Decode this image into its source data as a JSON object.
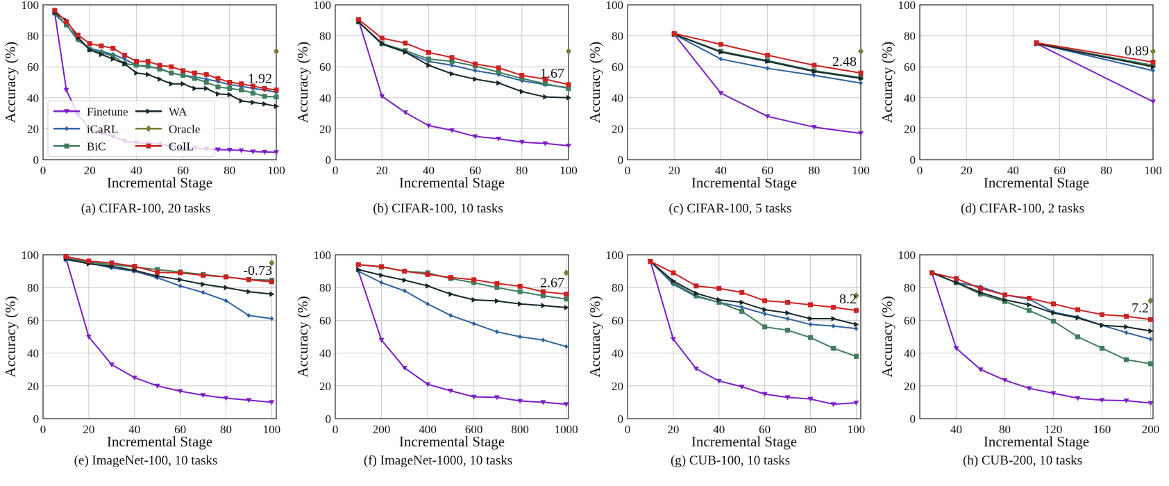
{
  "series_styles": {
    "Finetune": {
      "color": "#7b1fc9",
      "marker": "triangle-down"
    },
    "iCaRL": {
      "color": "#2e62a0",
      "marker": "diamond-small"
    },
    "BiC": {
      "color": "#3f7d5e",
      "marker": "square"
    },
    "WA": {
      "color": "#16262a",
      "marker": "triangle-right"
    },
    "Oracle": {
      "color": "#7a7a3a",
      "marker": "diamond"
    },
    "CoIL": {
      "color": "#cc2222",
      "marker": "square"
    }
  },
  "legend": {
    "placement": "lower-left",
    "panel": 0,
    "columns": [
      [
        "Finetune",
        "iCaRL",
        "BiC"
      ],
      [
        "WA",
        "Oracle",
        "CoIL"
      ]
    ]
  },
  "chart_data": [
    {
      "type": "line",
      "caption": "(a)  CIFAR-100, 20 tasks",
      "xlabel": "Incremental Stage",
      "ylabel": "Accuracy (%)",
      "xlim": [
        0,
        100
      ],
      "ylim": [
        0,
        100
      ],
      "xticks": [
        0,
        20,
        40,
        60,
        80,
        100
      ],
      "yticks": [
        0,
        20,
        40,
        60,
        80,
        100
      ],
      "grid": true,
      "annotation": "1.92",
      "x": [
        5,
        10,
        15,
        20,
        25,
        30,
        35,
        40,
        45,
        50,
        55,
        60,
        65,
        70,
        75,
        80,
        85,
        90,
        95,
        100
      ],
      "series": [
        {
          "name": "Finetune",
          "values": [
            95,
            45,
            29,
            20,
            17,
            15,
            12,
            11,
            10.5,
            10,
            9,
            7,
            7.5,
            7,
            6.5,
            6.3,
            6,
            5.2,
            5,
            4.8
          ]
        },
        {
          "name": "iCaRL",
          "values": [
            94,
            87,
            77,
            72,
            70,
            68,
            65,
            61,
            60,
            59,
            56,
            54.5,
            53.5,
            52,
            50.5,
            48.5,
            47.5,
            46,
            45,
            43.5
          ]
        },
        {
          "name": "BiC",
          "values": [
            95,
            87,
            78,
            71,
            69,
            67,
            62,
            61,
            60.5,
            58.5,
            56,
            54.5,
            52.5,
            50,
            47,
            46,
            45,
            43,
            41,
            40.5
          ]
        },
        {
          "name": "WA",
          "values": [
            95,
            90,
            79,
            71,
            68,
            65,
            62,
            56,
            55,
            52,
            49,
            49,
            46,
            46,
            42.5,
            42,
            38,
            37,
            36,
            34.5
          ]
        },
        {
          "name": "CoIL",
          "values": [
            96.5,
            89,
            80.5,
            75,
            73.5,
            72,
            67.5,
            63.5,
            63.5,
            61,
            60,
            57.5,
            56,
            55,
            52.5,
            50,
            49,
            47.5,
            46,
            45
          ]
        },
        {
          "name": "Oracle",
          "x": [
            100
          ],
          "values": [
            70
          ]
        }
      ]
    },
    {
      "type": "line",
      "caption": "(b)  CIFAR-100, 10 tasks",
      "xlabel": "Incremental Stage",
      "ylabel": "Accuracy (%)",
      "xlim": [
        0,
        100
      ],
      "ylim": [
        0,
        100
      ],
      "xticks": [
        0,
        20,
        40,
        60,
        80,
        100
      ],
      "yticks": [
        0,
        20,
        40,
        60,
        80,
        100
      ],
      "grid": true,
      "annotation": "1.67",
      "x": [
        10,
        20,
        30,
        40,
        50,
        60,
        70,
        80,
        90,
        100
      ],
      "series": [
        {
          "name": "Finetune",
          "values": [
            90,
            41,
            30.5,
            22,
            19,
            15,
            13.5,
            11.3,
            10.5,
            9
          ]
        },
        {
          "name": "iCaRL",
          "values": [
            89,
            74.5,
            69.5,
            63.5,
            61,
            57.5,
            55,
            51,
            48.5,
            46.5
          ]
        },
        {
          "name": "BiC",
          "values": [
            89,
            75,
            70.5,
            65,
            63.5,
            60.5,
            56.5,
            52.5,
            49,
            46
          ]
        },
        {
          "name": "WA",
          "values": [
            89,
            75,
            69.5,
            61,
            55.5,
            52,
            49.5,
            44,
            40.5,
            40
          ]
        },
        {
          "name": "CoIL",
          "values": [
            90.5,
            78.5,
            75.3,
            69.3,
            66,
            61.8,
            59.3,
            54.5,
            52,
            48.5
          ]
        },
        {
          "name": "Oracle",
          "x": [
            100
          ],
          "values": [
            70
          ]
        }
      ]
    },
    {
      "type": "line",
      "caption": "(c)  CIFAR-100, 5 tasks",
      "xlabel": "Incremental Stage",
      "ylabel": "Accuracy (%)",
      "xlim": [
        0,
        100
      ],
      "ylim": [
        0,
        100
      ],
      "xticks": [
        0,
        20,
        40,
        60,
        80,
        100
      ],
      "yticks": [
        0,
        20,
        40,
        60,
        80,
        100
      ],
      "grid": true,
      "annotation": "2.48",
      "x": [
        20,
        40,
        60,
        80,
        100
      ],
      "series": [
        {
          "name": "Finetune",
          "values": [
            81,
            43,
            28,
            21,
            17
          ]
        },
        {
          "name": "iCaRL",
          "values": [
            81,
            65,
            59,
            54.5,
            49.5
          ]
        },
        {
          "name": "BiC",
          "values": [
            81,
            70,
            64,
            57.5,
            53
          ]
        },
        {
          "name": "WA",
          "values": [
            81,
            69.5,
            63.5,
            57,
            52.5
          ]
        },
        {
          "name": "CoIL",
          "values": [
            81.5,
            74.5,
            67.5,
            61,
            56
          ]
        },
        {
          "name": "Oracle",
          "x": [
            100
          ],
          "values": [
            70
          ]
        }
      ]
    },
    {
      "type": "line",
      "caption": "(d)  CIFAR-100, 2 tasks",
      "xlabel": "Incremental Stage",
      "ylabel": "Accuracy (%)",
      "xlim": [
        0,
        100
      ],
      "ylim": [
        0,
        100
      ],
      "xticks": [
        0,
        20,
        40,
        60,
        80,
        100
      ],
      "yticks": [
        0,
        20,
        40,
        60,
        80,
        100
      ],
      "grid": true,
      "annotation": "0.89",
      "x": [
        50,
        100
      ],
      "series": [
        {
          "name": "Finetune",
          "values": [
            75,
            37.5
          ]
        },
        {
          "name": "iCaRL",
          "values": [
            75,
            57.5
          ]
        },
        {
          "name": "BiC",
          "values": [
            75,
            61
          ]
        },
        {
          "name": "WA",
          "values": [
            75,
            60
          ]
        },
        {
          "name": "CoIL",
          "values": [
            75.5,
            63
          ]
        },
        {
          "name": "Oracle",
          "x": [
            100
          ],
          "values": [
            70
          ]
        }
      ]
    },
    {
      "type": "line",
      "caption": "(e)  ImageNet-100, 10 tasks",
      "xlabel": "Incremental Stage",
      "ylabel": "Accuracy (%)",
      "xlim": [
        0,
        102
      ],
      "ylim": [
        0,
        100
      ],
      "xticks": [
        0,
        20,
        40,
        60,
        80,
        100
      ],
      "yticks": [
        0,
        20,
        40,
        60,
        80,
        100
      ],
      "grid": true,
      "annotation": "-0.73",
      "x": [
        10,
        20,
        30,
        40,
        50,
        60,
        70,
        80,
        90,
        100
      ],
      "series": [
        {
          "name": "Finetune",
          "values": [
            98,
            50,
            33,
            25,
            20,
            16.8,
            14.3,
            12.5,
            11.3,
            10
          ]
        },
        {
          "name": "iCaRL",
          "values": [
            97,
            95,
            92,
            90,
            86,
            81,
            77,
            72,
            63,
            61
          ]
        },
        {
          "name": "BiC",
          "values": [
            98,
            95.5,
            94,
            92.5,
            91,
            89.5,
            88,
            86.5,
            85,
            84.5
          ]
        },
        {
          "name": "WA",
          "values": [
            97.5,
            94.5,
            93,
            90.5,
            87,
            84.8,
            82,
            80,
            77.5,
            76
          ]
        },
        {
          "name": "CoIL",
          "values": [
            99,
            96.2,
            95,
            93,
            89.3,
            89,
            87.5,
            86.5,
            84.8,
            83.5
          ]
        },
        {
          "name": "Oracle",
          "x": [
            100
          ],
          "values": [
            95
          ]
        }
      ]
    },
    {
      "type": "line",
      "caption": "(f)  ImageNet-1000, 10 tasks",
      "xlabel": "Incremental Stage",
      "ylabel": "Accuracy (%)",
      "xlim": [
        0,
        1010
      ],
      "ylim": [
        0,
        100
      ],
      "xticks": [
        0,
        200,
        400,
        600,
        800,
        1000
      ],
      "yticks": [
        0,
        20,
        40,
        60,
        80,
        100
      ],
      "grid": true,
      "annotation": "2.67",
      "x": [
        100,
        200,
        300,
        400,
        500,
        600,
        700,
        800,
        900,
        1000
      ],
      "series": [
        {
          "name": "Finetune",
          "values": [
            90,
            48,
            31,
            21,
            17,
            13.3,
            13,
            10.8,
            10,
            8.8
          ]
        },
        {
          "name": "iCaRL",
          "values": [
            90,
            83,
            78,
            70,
            63,
            58,
            53,
            50,
            48,
            44
          ]
        },
        {
          "name": "BiC",
          "values": [
            94,
            92.5,
            90,
            89,
            85.5,
            83,
            80,
            77.5,
            75,
            73
          ]
        },
        {
          "name": "WA",
          "values": [
            91,
            87.5,
            84.5,
            81,
            76,
            72.5,
            71.8,
            70,
            69,
            67.8
          ]
        },
        {
          "name": "CoIL",
          "values": [
            94,
            92.8,
            90,
            88,
            86.2,
            84.8,
            82.5,
            80.8,
            77.5,
            76
          ]
        },
        {
          "name": "Oracle",
          "x": [
            1000
          ],
          "values": [
            89
          ]
        }
      ]
    },
    {
      "type": "line",
      "caption": "(g)  CUB-100, 10 tasks",
      "xlabel": "Incremental Stage",
      "ylabel": "Accuracy (%)",
      "xlim": [
        0,
        102
      ],
      "ylim": [
        0,
        100
      ],
      "xticks": [
        0,
        20,
        40,
        60,
        80,
        100
      ],
      "yticks": [
        0,
        20,
        40,
        60,
        80,
        100
      ],
      "grid": true,
      "annotation": "8.2",
      "x": [
        10,
        20,
        30,
        40,
        50,
        60,
        70,
        80,
        90,
        100
      ],
      "series": [
        {
          "name": "Finetune",
          "values": [
            96,
            48.5,
            30.5,
            23,
            19.5,
            15,
            13,
            12,
            8.8,
            9.7
          ]
        },
        {
          "name": "iCaRL",
          "values": [
            96,
            82,
            74.5,
            71,
            68,
            64,
            61,
            57.5,
            56.5,
            55
          ]
        },
        {
          "name": "BiC",
          "values": [
            96,
            83,
            75,
            71,
            65.5,
            56,
            54,
            49.5,
            43,
            38
          ]
        },
        {
          "name": "WA",
          "values": [
            96,
            84,
            76.5,
            72.5,
            71,
            66.5,
            64.5,
            61,
            61,
            57.5
          ]
        },
        {
          "name": "CoIL",
          "values": [
            96,
            89,
            81,
            79.5,
            77,
            72,
            71,
            69.5,
            68,
            66
          ]
        },
        {
          "name": "Oracle",
          "x": [
            100
          ],
          "values": [
            75
          ]
        }
      ]
    },
    {
      "type": "line",
      "caption": "(h)  CUB-200, 10 tasks",
      "xlabel": "Incremental Stage",
      "ylabel": "Accuracy (%)",
      "xlim": [
        10,
        202
      ],
      "ylim": [
        0,
        100
      ],
      "xticks": [
        40,
        80,
        120,
        160,
        200
      ],
      "yticks": [
        0,
        20,
        40,
        60,
        80,
        100
      ],
      "grid": true,
      "annotation": "7.2",
      "x": [
        20,
        40,
        60,
        80,
        100,
        120,
        140,
        160,
        180,
        200
      ],
      "series": [
        {
          "name": "Finetune",
          "values": [
            89,
            43,
            30,
            23.5,
            18.5,
            15.5,
            12.5,
            11.3,
            11,
            9.5
          ]
        },
        {
          "name": "iCaRL",
          "values": [
            89.5,
            83,
            80.5,
            75.5,
            73,
            65,
            62,
            57,
            52.5,
            48.5
          ]
        },
        {
          "name": "BiC",
          "values": [
            89,
            83,
            76,
            71.5,
            66,
            59.5,
            50,
            43,
            36,
            33.5
          ]
        },
        {
          "name": "WA",
          "values": [
            89,
            83,
            77,
            72.5,
            69.5,
            64.5,
            61.5,
            57,
            56,
            53.5
          ]
        },
        {
          "name": "CoIL",
          "values": [
            89,
            85.5,
            79.5,
            75.5,
            73.5,
            70,
            66.5,
            63.5,
            62.5,
            60.5
          ]
        },
        {
          "name": "Oracle",
          "x": [
            200
          ],
          "values": [
            72
          ]
        }
      ]
    }
  ]
}
